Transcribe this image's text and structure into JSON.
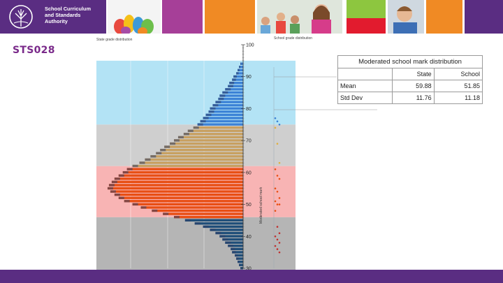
{
  "header": {
    "logo_lines": [
      "School Curriculum",
      "and Standards",
      "Authority"
    ],
    "tile_colors": [
      "#ffffff",
      "#a63f98",
      "#f08a24",
      "#5a2d82",
      "#f08a24",
      "#5a2d82",
      "#8dc63f",
      "#f08a24"
    ]
  },
  "page_label": "STS028",
  "chart": {
    "left_title": "State grade distribution",
    "right_title": "School grade distribution",
    "axis_label": "Moderated school mark",
    "axis_ticks": [
      "100",
      "90",
      "80",
      "70",
      "60",
      "50",
      "40",
      "30"
    ],
    "band_colors": [
      "#b3e3f5",
      "#cfcfcf",
      "#f8b4b4",
      "#b5b5b5"
    ],
    "state_bar_colors": [
      "#3b82d6",
      "#c8a060",
      "#e84f14",
      "#1f4e79"
    ],
    "school_marker_color": "#1f4e79"
  },
  "table": {
    "title": "Moderated school mark distribution",
    "col_headers": [
      "State",
      "School"
    ],
    "rows": [
      {
        "label": "Mean",
        "state": "59.88",
        "school": "51.85"
      },
      {
        "label": "Std Dev",
        "state": "11.76",
        "school": "11.18"
      }
    ]
  },
  "chart_data": {
    "type": "bar",
    "orientation": "horizontal",
    "title": "",
    "xlabel": "",
    "ylabel": "Moderated school mark",
    "ylim": [
      28,
      100
    ],
    "summary": {
      "state_mean": 59.88,
      "school_mean": 51.85,
      "state_std_dev": 11.76,
      "school_std_dev": 11.18
    },
    "state_distribution": {
      "marks": [
        94,
        93,
        92,
        91,
        90,
        89,
        88,
        87,
        86,
        85,
        84,
        83,
        82,
        81,
        80,
        79,
        78,
        77,
        76,
        75,
        74,
        73,
        72,
        71,
        70,
        69,
        68,
        67,
        66,
        65,
        64,
        63,
        62,
        61,
        60,
        59,
        58,
        57,
        56,
        55,
        54,
        53,
        52,
        51,
        50,
        49,
        48,
        47,
        46,
        45,
        44,
        43,
        42,
        41,
        40,
        39,
        38,
        37,
        36,
        35,
        34,
        33,
        32,
        31,
        30
      ],
      "relative_frequency": [
        0.02,
        0.03,
        0.04,
        0.05,
        0.07,
        0.08,
        0.1,
        0.11,
        0.13,
        0.15,
        0.17,
        0.18,
        0.2,
        0.22,
        0.24,
        0.25,
        0.27,
        0.29,
        0.31,
        0.33,
        0.36,
        0.4,
        0.43,
        0.47,
        0.5,
        0.53,
        0.57,
        0.6,
        0.63,
        0.67,
        0.71,
        0.75,
        0.8,
        0.84,
        0.87,
        0.9,
        0.93,
        0.95,
        0.97,
        0.98,
        0.96,
        0.93,
        0.9,
        0.86,
        0.8,
        0.74,
        0.66,
        0.58,
        0.5,
        0.42,
        0.35,
        0.29,
        0.24,
        0.2,
        0.17,
        0.15,
        0.13,
        0.11,
        0.09,
        0.08,
        0.06,
        0.05,
        0.04,
        0.03,
        0.02
      ]
    },
    "school_marks": [
      77,
      76,
      75,
      74,
      69,
      63,
      61,
      59,
      58,
      55,
      54,
      52,
      51,
      50,
      50,
      48,
      43,
      41,
      40,
      39,
      38,
      37,
      36,
      35
    ]
  }
}
